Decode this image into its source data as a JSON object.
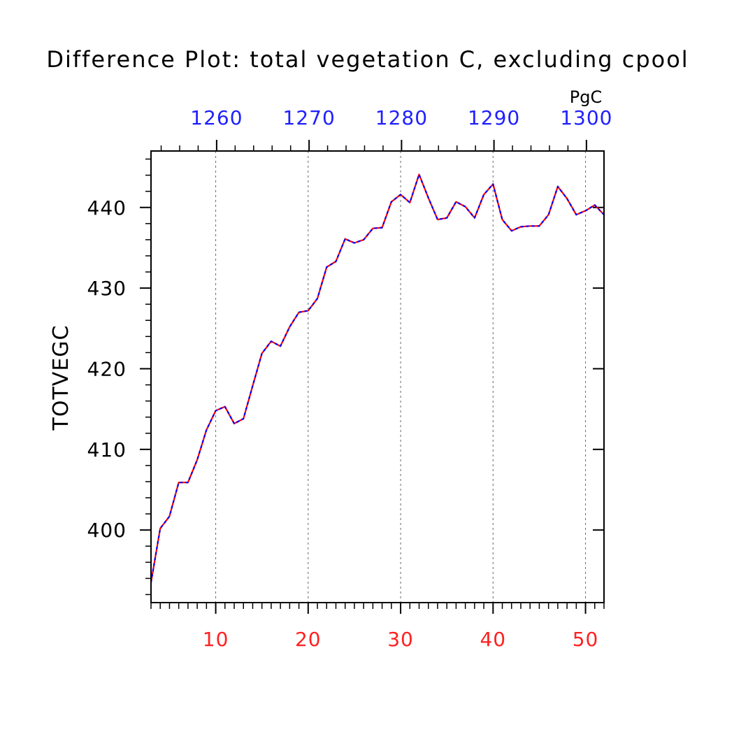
{
  "chart_data": {
    "type": "line",
    "title": "Difference Plot: total vegetation C, excluding cpool",
    "ylabel": "TOTVEGC",
    "top_axis_units": "PgC",
    "xlim": [
      3,
      52
    ],
    "ylim": [
      391,
      447
    ],
    "x_ticks_bottom": [
      10,
      20,
      30,
      40,
      50
    ],
    "x_ticks_top": [
      1260,
      1270,
      1280,
      1290,
      1300
    ],
    "top_axis_range": [
      1252.9,
      1301.9
    ],
    "y_ticks": [
      400,
      410,
      420,
      430,
      440
    ],
    "bottom_axis_color": "#ff2020",
    "top_axis_color": "#2020ff",
    "grid_x": true,
    "series": [
      {
        "color_solid": "#ff0000",
        "color_dash": "#0000ff",
        "x": [
          3,
          4,
          5,
          6,
          7,
          8,
          9,
          10,
          11,
          12,
          13,
          14,
          15,
          16,
          17,
          18,
          19,
          20,
          21,
          22,
          23,
          24,
          25,
          26,
          27,
          28,
          29,
          30,
          31,
          32,
          33,
          34,
          35,
          36,
          37,
          38,
          39,
          40,
          41,
          42,
          43,
          44,
          45,
          46,
          47,
          48,
          49,
          50,
          51,
          52
        ],
        "y": [
          393.5,
          400.2,
          401.7,
          405.9,
          405.9,
          408.7,
          412.4,
          414.8,
          415.3,
          413.2,
          413.8,
          417.9,
          421.9,
          423.4,
          422.8,
          425.2,
          427.0,
          427.2,
          428.7,
          432.6,
          433.3,
          436.1,
          435.6,
          436.0,
          437.4,
          437.5,
          440.7,
          441.6,
          440.6,
          444.1,
          441.2,
          438.5,
          438.7,
          440.7,
          440.1,
          438.7,
          441.6,
          442.9,
          438.5,
          437.1,
          437.6,
          437.7,
          437.7,
          439.1,
          442.6,
          441.1,
          439.1,
          439.6,
          440.3,
          439.1
        ]
      }
    ]
  }
}
